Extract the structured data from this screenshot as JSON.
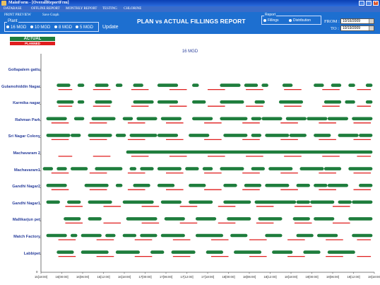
{
  "window": {
    "title": "MainForm - [OverallReportFrm]"
  },
  "menu": [
    "DATABASE",
    "OFFLINE REPORT",
    "MONTHLY REPORT",
    "TESTING",
    "CHLORINE"
  ],
  "toolbar": {
    "print_preview": "PRINT PREVIEW",
    "save_graph": "Save Graph",
    "report_title": "PLAN vs ACTUAL FILLINGS REPORT",
    "plant_label": "Plant",
    "plant_options": [
      "16 MGD",
      "10 MGD",
      "8 MGD",
      "5 MGD"
    ],
    "update": "Update",
    "report_label": "Report",
    "report_options": [
      "Fillings",
      "Distribution"
    ],
    "from_label": "FROM :",
    "to_label": "TO :",
    "from_date": "10/16/2009",
    "to_date": "10/19/2009"
  },
  "legend": {
    "actual": "ACTUAL",
    "planned": "PLANNED",
    "actual_color": "#1e7d3c",
    "planned_color": "#e01e1e"
  },
  "chart_data": {
    "type": "timeline",
    "title": "16 MGD",
    "y_axis_zero": "0",
    "x_tick_labels": [
      "15[18:00]",
      "16[00:00]",
      "16[06:00]",
      "16[12:00]",
      "16[18:00]",
      "17[00:00]",
      "17[06:00]",
      "17[12:00]",
      "17[18:00]",
      "18[00:00]",
      "18[06:00]",
      "18[12:00]",
      "18[18:00]",
      "19[00:00]",
      "19[06:00]",
      "19[12:00]",
      "19[18:00]"
    ],
    "x_range_hours": [
      0,
      96
    ],
    "categories": [
      "Gollapalem gattu",
      "Gulamohiddin Nagar",
      "Karmika nagar",
      "Rahman Park",
      "Sri Nagar Colony",
      "Machavaram 2",
      "Machavaram1",
      "Gandhi Nagar2",
      "Gandhi Nagar1",
      "Mallikarjun pet",
      "Match Factory",
      "Labbipet"
    ],
    "actual": [
      [],
      [
        [
          5,
          8
        ],
        [
          11,
          12
        ],
        [
          16,
          19
        ],
        [
          22,
          23
        ],
        [
          27,
          29
        ],
        [
          34,
          39
        ],
        [
          44,
          45
        ],
        [
          52,
          57
        ],
        [
          59,
          62
        ],
        [
          64,
          65
        ],
        [
          70,
          72
        ],
        [
          79,
          81
        ],
        [
          84,
          86
        ],
        [
          89,
          90
        ],
        [
          94,
          95
        ]
      ],
      [
        [
          5,
          9
        ],
        [
          11,
          12
        ],
        [
          16,
          20
        ],
        [
          27,
          32
        ],
        [
          34,
          39
        ],
        [
          44,
          47
        ],
        [
          52,
          58
        ],
        [
          62,
          64
        ],
        [
          69,
          75
        ],
        [
          82,
          86
        ],
        [
          88,
          90
        ],
        [
          94,
          95
        ]
      ],
      [
        [
          2,
          7
        ],
        [
          10,
          12
        ],
        [
          15,
          21
        ],
        [
          24,
          26
        ],
        [
          28,
          33
        ],
        [
          35,
          40
        ],
        [
          44,
          49
        ],
        [
          52,
          59
        ],
        [
          61,
          63
        ],
        [
          64,
          69
        ],
        [
          71,
          76
        ],
        [
          77,
          82
        ],
        [
          83,
          88
        ],
        [
          90,
          95
        ]
      ],
      [
        [
          2,
          8
        ],
        [
          9,
          11
        ],
        [
          14,
          20
        ],
        [
          22,
          24
        ],
        [
          26,
          33
        ],
        [
          34,
          39
        ],
        [
          43,
          48
        ],
        [
          53,
          59
        ],
        [
          61,
          63
        ],
        [
          65,
          71
        ],
        [
          72,
          76
        ],
        [
          79,
          83
        ],
        [
          86,
          91
        ],
        [
          92,
          95
        ]
      ],
      [
        [
          25,
          95
        ]
      ],
      [
        [
          1,
          3
        ],
        [
          5,
          7
        ],
        [
          9,
          13
        ],
        [
          16,
          23
        ],
        [
          26,
          27
        ],
        [
          29,
          32
        ],
        [
          34,
          40
        ],
        [
          42,
          45
        ],
        [
          47,
          49
        ],
        [
          52,
          58
        ],
        [
          61,
          64
        ],
        [
          66,
          72
        ],
        [
          75,
          81
        ],
        [
          82,
          86
        ],
        [
          89,
          95
        ]
      ],
      [
        [
          2,
          7
        ],
        [
          13,
          19
        ],
        [
          22,
          23
        ],
        [
          27,
          31
        ],
        [
          34,
          38
        ],
        [
          43,
          47
        ],
        [
          53,
          56
        ],
        [
          59,
          63
        ],
        [
          65,
          71
        ],
        [
          74,
          77
        ],
        [
          79,
          82
        ],
        [
          83,
          88
        ],
        [
          92,
          95
        ]
      ],
      [
        [
          2,
          5
        ],
        [
          8,
          11
        ],
        [
          14,
          20
        ],
        [
          24,
          32
        ],
        [
          35,
          40
        ],
        [
          43,
          49
        ],
        [
          53,
          60
        ],
        [
          62,
          73
        ],
        [
          74,
          77
        ],
        [
          78,
          84
        ],
        [
          86,
          89
        ],
        [
          90,
          95
        ]
      ],
      [
        [
          7,
          11
        ],
        [
          14,
          17
        ],
        [
          25,
          33
        ],
        [
          36,
          41
        ],
        [
          45,
          50
        ],
        [
          54,
          60
        ],
        [
          63,
          69
        ],
        [
          73,
          77
        ],
        [
          79,
          84
        ],
        [
          89,
          95
        ]
      ],
      [
        [
          2,
          7
        ],
        [
          9,
          10
        ],
        [
          12,
          17
        ],
        [
          19,
          21
        ],
        [
          24,
          27
        ],
        [
          29,
          33
        ],
        [
          35,
          41
        ],
        [
          45,
          52
        ],
        [
          55,
          59
        ],
        [
          65,
          69
        ],
        [
          74,
          78
        ],
        [
          80,
          85
        ],
        [
          90,
          95
        ]
      ],
      [
        [
          5,
          9
        ],
        [
          12,
          19
        ],
        [
          22,
          28
        ],
        [
          32,
          35
        ],
        [
          38,
          44
        ],
        [
          48,
          52
        ],
        [
          56,
          63
        ],
        [
          67,
          72
        ],
        [
          76,
          80
        ],
        [
          83,
          90
        ]
      ]
    ],
    "planned": [
      [],
      [
        [
          5,
          9
        ],
        [
          15,
          20
        ],
        [
          26,
          31
        ],
        [
          37,
          42
        ],
        [
          48,
          53
        ],
        [
          59,
          64
        ],
        [
          70,
          75
        ],
        [
          81,
          86
        ],
        [
          91,
          95
        ]
      ],
      [
        [
          5,
          9
        ],
        [
          15,
          20
        ],
        [
          26,
          31
        ],
        [
          37,
          42
        ],
        [
          48,
          53
        ],
        [
          59,
          64
        ],
        [
          70,
          75
        ],
        [
          81,
          86
        ],
        [
          91,
          95
        ]
      ],
      [
        [
          3,
          8
        ],
        [
          14,
          19
        ],
        [
          25,
          30
        ],
        [
          36,
          41
        ],
        [
          47,
          52
        ],
        [
          58,
          63
        ],
        [
          69,
          74
        ],
        [
          80,
          85
        ],
        [
          90,
          95
        ]
      ],
      [
        [
          3,
          8
        ],
        [
          14,
          19
        ],
        [
          25,
          30
        ],
        [
          36,
          41
        ],
        [
          47,
          52
        ],
        [
          58,
          63
        ],
        [
          69,
          74
        ],
        [
          80,
          85
        ],
        [
          90,
          95
        ]
      ],
      [
        [
          5,
          9
        ],
        [
          15,
          20
        ],
        [
          26,
          31
        ],
        [
          37,
          42
        ],
        [
          48,
          53
        ],
        [
          59,
          64
        ],
        [
          70,
          75
        ],
        [
          81,
          86
        ],
        [
          91,
          95
        ]
      ],
      [
        [
          3,
          8
        ],
        [
          14,
          19
        ],
        [
          25,
          30
        ],
        [
          36,
          41
        ],
        [
          47,
          52
        ],
        [
          58,
          63
        ],
        [
          69,
          74
        ],
        [
          80,
          85
        ],
        [
          90,
          95
        ]
      ],
      [
        [
          3,
          8
        ],
        [
          14,
          19
        ],
        [
          25,
          30
        ],
        [
          36,
          41
        ],
        [
          47,
          52
        ],
        [
          58,
          63
        ],
        [
          69,
          74
        ],
        [
          80,
          85
        ],
        [
          90,
          95
        ]
      ],
      [
        [
          7,
          12
        ],
        [
          18,
          23
        ],
        [
          29,
          34
        ],
        [
          40,
          45
        ],
        [
          51,
          56
        ],
        [
          62,
          67
        ],
        [
          73,
          78
        ],
        [
          84,
          89
        ]
      ],
      [
        [
          7,
          12
        ],
        [
          18,
          23
        ],
        [
          29,
          34
        ],
        [
          40,
          45
        ],
        [
          51,
          56
        ],
        [
          62,
          67
        ],
        [
          73,
          78
        ],
        [
          84,
          89
        ]
      ],
      [
        [
          5,
          10
        ],
        [
          16,
          21
        ],
        [
          27,
          32
        ],
        [
          38,
          43
        ],
        [
          49,
          54
        ],
        [
          60,
          65
        ],
        [
          71,
          76
        ],
        [
          82,
          87
        ],
        [
          91,
          95
        ]
      ],
      [
        [
          5,
          10
        ],
        [
          16,
          21
        ],
        [
          27,
          32
        ],
        [
          38,
          43
        ],
        [
          49,
          54
        ],
        [
          60,
          65
        ],
        [
          71,
          76
        ],
        [
          82,
          87
        ],
        [
          91,
          95
        ]
      ]
    ]
  }
}
